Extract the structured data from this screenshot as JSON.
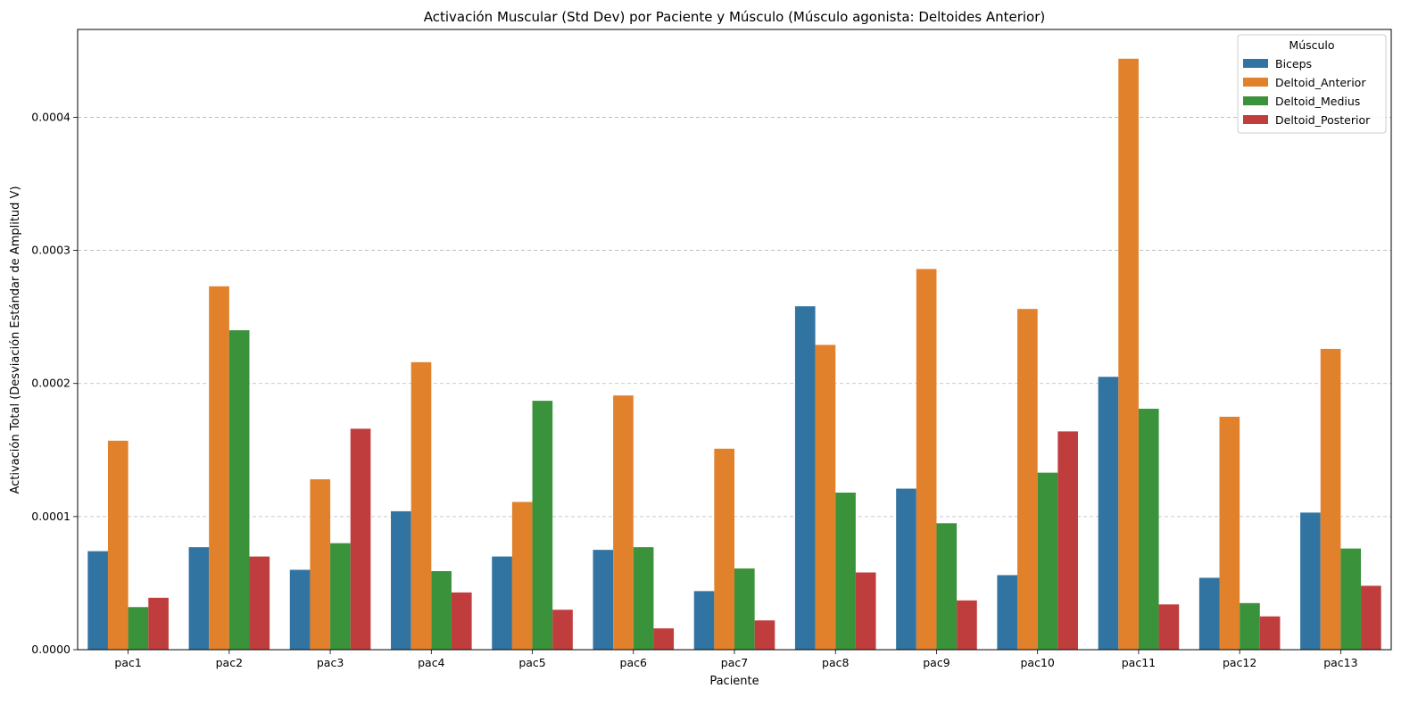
{
  "chart_data": {
    "type": "bar",
    "title": "Activación Muscular (Std Dev) por Paciente y Músculo (Músculo agonista: Deltoides Anterior)",
    "xlabel": "Paciente",
    "ylabel": "Activación Total (Desviación Estándar de Amplitud V)",
    "ylim": [
      0,
      0.000466
    ],
    "yticks": [
      0,
      0.0001,
      0.0002,
      0.0003,
      0.0004
    ],
    "ytick_labels": [
      "0.0000",
      "0.0001",
      "0.0002",
      "0.0003",
      "0.0004"
    ],
    "grid": "y dashed",
    "legend_title": "Músculo",
    "legend_position": "top-right",
    "categories": [
      "pac1",
      "pac2",
      "pac3",
      "pac4",
      "pac5",
      "pac6",
      "pac7",
      "pac8",
      "pac9",
      "pac10",
      "pac11",
      "pac12",
      "pac13"
    ],
    "series": [
      {
        "name": "Biceps",
        "color": "#3274a1",
        "values": [
          7.4e-05,
          7.7e-05,
          6e-05,
          0.000104,
          7e-05,
          7.5e-05,
          4.4e-05,
          0.000258,
          0.000121,
          5.6e-05,
          0.000205,
          5.4e-05,
          0.000103
        ]
      },
      {
        "name": "Deltoid_Anterior",
        "color": "#e1812c",
        "values": [
          0.000157,
          0.000273,
          0.000128,
          0.000216,
          0.000111,
          0.000191,
          0.000151,
          0.000229,
          0.000286,
          0.000256,
          0.000444,
          0.000175,
          0.000226
        ]
      },
      {
        "name": "Deltoid_Medius",
        "color": "#3a923a",
        "values": [
          3.2e-05,
          0.00024,
          8e-05,
          5.9e-05,
          0.000187,
          7.7e-05,
          6.1e-05,
          0.000118,
          9.5e-05,
          0.000133,
          0.000181,
          3.5e-05,
          7.6e-05
        ]
      },
      {
        "name": "Deltoid_Posterior",
        "color": "#c03d3e",
        "values": [
          3.9e-05,
          7e-05,
          0.000166,
          4.3e-05,
          3e-05,
          1.6e-05,
          2.2e-05,
          5.8e-05,
          3.7e-05,
          0.000164,
          3.4e-05,
          2.5e-05,
          4.8e-05
        ]
      }
    ]
  }
}
